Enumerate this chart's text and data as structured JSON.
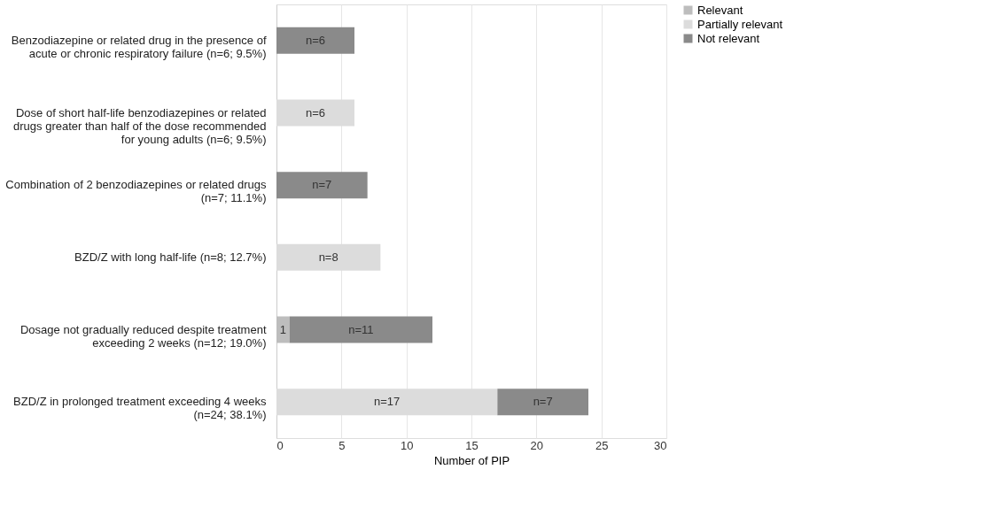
{
  "chart_data": {
    "type": "bar",
    "orientation": "horizontal",
    "stacked": true,
    "xlabel": "Number of PIP",
    "categories": [
      "Benzodiazepine or related drug in the presence of acute or chronic respiratory failure (n=6; 9.5%)",
      "Dose of short half-life benzodiazepines or related drugs greater than half of the dose recommended for young adults (n=6; 9.5%)",
      "Combination of 2 benzodiazepines or related drugs (n=7; 11.1%)",
      "BZD/Z with long half-life (n=8; 12.7%)",
      "Dosage not gradually reduced despite treatment exceeding 2 weeks (n=12; 19.0%)",
      "BZD/Z in prolonged treatment exceeding 4 weeks (n=24; 38.1%)"
    ],
    "series": [
      {
        "name": "Relevant",
        "color": "#bdbdbd",
        "values": [
          null,
          null,
          null,
          null,
          1,
          null
        ],
        "value_labels": [
          null,
          null,
          null,
          null,
          "1",
          null
        ]
      },
      {
        "name": "Partially relevant",
        "color": "#dcdcdc",
        "values": [
          null,
          6,
          null,
          8,
          null,
          17
        ],
        "value_labels": [
          null,
          "n=6",
          null,
          "n=8",
          null,
          "n=17"
        ]
      },
      {
        "name": "Not relevant",
        "color": "#8a8a8a",
        "values": [
          6,
          null,
          7,
          null,
          11,
          7
        ],
        "value_labels": [
          "n=6",
          null,
          "n=7",
          null,
          "n=11",
          "n=7"
        ]
      }
    ],
    "xlim": [
      0,
      30
    ],
    "xticks": [
      0,
      5,
      10,
      15,
      20,
      25,
      30
    ],
    "grid": "x",
    "legend": "right"
  }
}
